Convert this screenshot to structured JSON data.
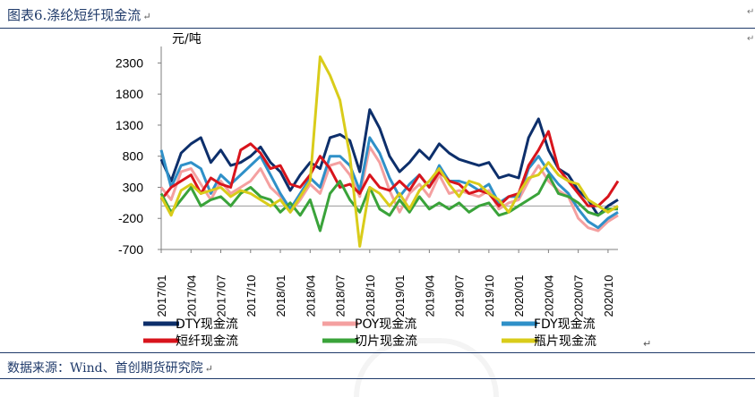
{
  "caption": {
    "title": "图表6.涤纶短纤现金流",
    "return_mark": "↵"
  },
  "source": {
    "text": "数据来源：Wind、首创期货研究院",
    "return_mark": "↵"
  },
  "legend_return_mark": "↵",
  "margin_marks": [
    "↵",
    "↵"
  ],
  "chart_data": {
    "type": "line",
    "ylabel": "元/吨",
    "ylim": [
      -700,
      2450
    ],
    "yticks": [
      -700,
      -200,
      300,
      800,
      1300,
      1800,
      2300
    ],
    "x_range": [
      "2017-01",
      "2020-11"
    ],
    "xticks": [
      "2017/01",
      "2017/04",
      "2017/07",
      "2017/10",
      "2018/01",
      "2018/04",
      "2018/07",
      "2018/10",
      "2019/01",
      "2019/04",
      "2019/07",
      "2019/10",
      "2020/01",
      "2020/04",
      "2020/07",
      "2020/10"
    ],
    "zero_line": true,
    "grid": false,
    "legend_position": "bottom",
    "series": [
      {
        "name": "DTY现金流",
        "color": "#0d2f6b",
        "points": [
          [
            "2017/01",
            750
          ],
          [
            "2017/02",
            400
          ],
          [
            "2017/03",
            850
          ],
          [
            "2017/04",
            1000
          ],
          [
            "2017/05",
            1100
          ],
          [
            "2017/06",
            700
          ],
          [
            "2017/07",
            900
          ],
          [
            "2017/08",
            650
          ],
          [
            "2017/09",
            700
          ],
          [
            "2017/10",
            800
          ],
          [
            "2017/11",
            950
          ],
          [
            "2017/12",
            700
          ],
          [
            "2018/01",
            550
          ],
          [
            "2018/02",
            250
          ],
          [
            "2018/03",
            500
          ],
          [
            "2018/04",
            700
          ],
          [
            "2018/05",
            600
          ],
          [
            "2018/06",
            1100
          ],
          [
            "2018/07",
            1150
          ],
          [
            "2018/08",
            1050
          ],
          [
            "2018/09",
            550
          ],
          [
            "2018/10",
            1550
          ],
          [
            "2018/11",
            1250
          ],
          [
            "2018/12",
            800
          ],
          [
            "2019/01",
            550
          ],
          [
            "2019/02",
            700
          ],
          [
            "2019/03",
            900
          ],
          [
            "2019/04",
            750
          ],
          [
            "2019/05",
            1000
          ],
          [
            "2019/06",
            850
          ],
          [
            "2019/07",
            750
          ],
          [
            "2019/08",
            700
          ],
          [
            "2019/09",
            650
          ],
          [
            "2019/10",
            700
          ],
          [
            "2019/11",
            450
          ],
          [
            "2019/12",
            500
          ],
          [
            "2020/01",
            450
          ],
          [
            "2020/02",
            1100
          ],
          [
            "2020/03",
            1400
          ],
          [
            "2020/04",
            900
          ],
          [
            "2020/05",
            600
          ],
          [
            "2020/06",
            500
          ],
          [
            "2020/07",
            250
          ],
          [
            "2020/08",
            100
          ],
          [
            "2020/09",
            -150
          ],
          [
            "2020/10",
            0
          ],
          [
            "2020/11",
            100
          ]
        ]
      },
      {
        "name": "POY现金流",
        "color": "#f4a0a0",
        "points": [
          [
            "2017/01",
            300
          ],
          [
            "2017/02",
            100
          ],
          [
            "2017/03",
            550
          ],
          [
            "2017/04",
            600
          ],
          [
            "2017/05",
            350
          ],
          [
            "2017/06",
            100
          ],
          [
            "2017/07",
            400
          ],
          [
            "2017/08",
            200
          ],
          [
            "2017/09",
            300
          ],
          [
            "2017/10",
            400
          ],
          [
            "2017/11",
            600
          ],
          [
            "2017/12",
            300
          ],
          [
            "2018/01",
            150
          ],
          [
            "2018/02",
            -100
          ],
          [
            "2018/03",
            100
          ],
          [
            "2018/04",
            350
          ],
          [
            "2018/05",
            200
          ],
          [
            "2018/06",
            650
          ],
          [
            "2018/07",
            700
          ],
          [
            "2018/08",
            500
          ],
          [
            "2018/09",
            150
          ],
          [
            "2018/10",
            950
          ],
          [
            "2018/11",
            700
          ],
          [
            "2018/12",
            250
          ],
          [
            "2019/01",
            -100
          ],
          [
            "2019/02",
            200
          ],
          [
            "2019/03",
            350
          ],
          [
            "2019/04",
            150
          ],
          [
            "2019/05",
            500
          ],
          [
            "2019/06",
            200
          ],
          [
            "2019/07",
            250
          ],
          [
            "2019/08",
            200
          ],
          [
            "2019/09",
            150
          ],
          [
            "2019/10",
            250
          ],
          [
            "2019/11",
            -50
          ],
          [
            "2019/12",
            50
          ],
          [
            "2020/01",
            100
          ],
          [
            "2020/02",
            400
          ],
          [
            "2020/03",
            650
          ],
          [
            "2020/04",
            400
          ],
          [
            "2020/05",
            250
          ],
          [
            "2020/06",
            150
          ],
          [
            "2020/07",
            -200
          ],
          [
            "2020/08",
            -350
          ],
          [
            "2020/09",
            -400
          ],
          [
            "2020/10",
            -250
          ],
          [
            "2020/11",
            -150
          ]
        ]
      },
      {
        "name": "FDY现金流",
        "color": "#2f90c8",
        "points": [
          [
            "2017/01",
            900
          ],
          [
            "2017/02",
            300
          ],
          [
            "2017/03",
            650
          ],
          [
            "2017/04",
            700
          ],
          [
            "2017/05",
            600
          ],
          [
            "2017/06",
            200
          ],
          [
            "2017/07",
            500
          ],
          [
            "2017/08",
            350
          ],
          [
            "2017/09",
            500
          ],
          [
            "2017/10",
            650
          ],
          [
            "2017/11",
            800
          ],
          [
            "2017/12",
            500
          ],
          [
            "2018/01",
            200
          ],
          [
            "2018/02",
            -50
          ],
          [
            "2018/03",
            200
          ],
          [
            "2018/04",
            450
          ],
          [
            "2018/05",
            300
          ],
          [
            "2018/06",
            800
          ],
          [
            "2018/07",
            800
          ],
          [
            "2018/08",
            650
          ],
          [
            "2018/09",
            250
          ],
          [
            "2018/10",
            1100
          ],
          [
            "2018/11",
            850
          ],
          [
            "2018/12",
            450
          ],
          [
            "2019/01",
            150
          ],
          [
            "2019/02",
            350
          ],
          [
            "2019/03",
            500
          ],
          [
            "2019/04",
            300
          ],
          [
            "2019/05",
            650
          ],
          [
            "2019/06",
            400
          ],
          [
            "2019/07",
            400
          ],
          [
            "2019/08",
            350
          ],
          [
            "2019/09",
            250
          ],
          [
            "2019/10",
            350
          ],
          [
            "2019/11",
            50
          ],
          [
            "2019/12",
            150
          ],
          [
            "2020/01",
            150
          ],
          [
            "2020/02",
            600
          ],
          [
            "2020/03",
            800
          ],
          [
            "2020/04",
            550
          ],
          [
            "2020/05",
            350
          ],
          [
            "2020/06",
            200
          ],
          [
            "2020/07",
            -50
          ],
          [
            "2020/08",
            -250
          ],
          [
            "2020/09",
            -350
          ],
          [
            "2020/10",
            -200
          ],
          [
            "2020/11",
            -100
          ]
        ]
      },
      {
        "name": "短纤现金流",
        "color": "#d8141c",
        "points": [
          [
            "2017/01",
            100
          ],
          [
            "2017/02",
            300
          ],
          [
            "2017/03",
            400
          ],
          [
            "2017/04",
            500
          ],
          [
            "2017/05",
            200
          ],
          [
            "2017/06",
            450
          ],
          [
            "2017/07",
            350
          ],
          [
            "2017/08",
            300
          ],
          [
            "2017/09",
            900
          ],
          [
            "2017/10",
            1000
          ],
          [
            "2017/11",
            850
          ],
          [
            "2017/12",
            600
          ],
          [
            "2018/01",
            650
          ],
          [
            "2018/02",
            350
          ],
          [
            "2018/03",
            300
          ],
          [
            "2018/04",
            500
          ],
          [
            "2018/05",
            800
          ],
          [
            "2018/06",
            600
          ],
          [
            "2018/07",
            300
          ],
          [
            "2018/08",
            350
          ],
          [
            "2018/09",
            200
          ],
          [
            "2018/10",
            500
          ],
          [
            "2018/11",
            300
          ],
          [
            "2018/12",
            250
          ],
          [
            "2019/01",
            400
          ],
          [
            "2019/02",
            250
          ],
          [
            "2019/03",
            500
          ],
          [
            "2019/04",
            300
          ],
          [
            "2019/05",
            550
          ],
          [
            "2019/06",
            400
          ],
          [
            "2019/07",
            350
          ],
          [
            "2019/08",
            200
          ],
          [
            "2019/09",
            250
          ],
          [
            "2019/10",
            200
          ],
          [
            "2019/11",
            0
          ],
          [
            "2019/12",
            150
          ],
          [
            "2020/01",
            200
          ],
          [
            "2020/02",
            650
          ],
          [
            "2020/03",
            900
          ],
          [
            "2020/04",
            1200
          ],
          [
            "2020/05",
            600
          ],
          [
            "2020/06",
            400
          ],
          [
            "2020/07",
            200
          ],
          [
            "2020/08",
            0
          ],
          [
            "2020/09",
            0
          ],
          [
            "2020/10",
            150
          ],
          [
            "2020/11",
            400
          ]
        ]
      },
      {
        "name": "切片现金流",
        "color": "#3aa33a",
        "points": [
          [
            "2017/01",
            200
          ],
          [
            "2017/02",
            -100
          ],
          [
            "2017/03",
            100
          ],
          [
            "2017/04",
            300
          ],
          [
            "2017/05",
            0
          ],
          [
            "2017/06",
            100
          ],
          [
            "2017/07",
            150
          ],
          [
            "2017/08",
            0
          ],
          [
            "2017/09",
            200
          ],
          [
            "2017/10",
            300
          ],
          [
            "2017/11",
            150
          ],
          [
            "2017/12",
            100
          ],
          [
            "2018/01",
            -100
          ],
          [
            "2018/02",
            50
          ],
          [
            "2018/03",
            -150
          ],
          [
            "2018/04",
            100
          ],
          [
            "2018/05",
            -400
          ],
          [
            "2018/06",
            200
          ],
          [
            "2018/07",
            400
          ],
          [
            "2018/08",
            100
          ],
          [
            "2018/09",
            -100
          ],
          [
            "2018/10",
            300
          ],
          [
            "2018/11",
            -50
          ],
          [
            "2018/12",
            -150
          ],
          [
            "2019/01",
            100
          ],
          [
            "2019/02",
            -100
          ],
          [
            "2019/03",
            150
          ],
          [
            "2019/04",
            -50
          ],
          [
            "2019/05",
            50
          ],
          [
            "2019/06",
            -50
          ],
          [
            "2019/07",
            50
          ],
          [
            "2019/08",
            -100
          ],
          [
            "2019/09",
            0
          ],
          [
            "2019/10",
            50
          ],
          [
            "2019/11",
            -150
          ],
          [
            "2019/12",
            -100
          ],
          [
            "2020/01",
            0
          ],
          [
            "2020/02",
            100
          ],
          [
            "2020/03",
            200
          ],
          [
            "2020/04",
            500
          ],
          [
            "2020/05",
            200
          ],
          [
            "2020/06",
            150
          ],
          [
            "2020/07",
            50
          ],
          [
            "2020/08",
            -100
          ],
          [
            "2020/09",
            -150
          ],
          [
            "2020/10",
            -50
          ],
          [
            "2020/11",
            -50
          ]
        ]
      },
      {
        "name": "瓶片现金流",
        "color": "#d9cc1a",
        "points": [
          [
            "2017/01",
            150
          ],
          [
            "2017/02",
            -150
          ],
          [
            "2017/03",
            250
          ],
          [
            "2017/04",
            350
          ],
          [
            "2017/05",
            200
          ],
          [
            "2017/06",
            250
          ],
          [
            "2017/07",
            300
          ],
          [
            "2017/08",
            150
          ],
          [
            "2017/09",
            250
          ],
          [
            "2017/10",
            200
          ],
          [
            "2017/11",
            100
          ],
          [
            "2017/12",
            0
          ],
          [
            "2018/01",
            100
          ],
          [
            "2018/02",
            -100
          ],
          [
            "2018/03",
            150
          ],
          [
            "2018/04",
            400
          ],
          [
            "2018/05",
            2400
          ],
          [
            "2018/06",
            2100
          ],
          [
            "2018/07",
            1700
          ],
          [
            "2018/08",
            800
          ],
          [
            "2018/09",
            -650
          ],
          [
            "2018/10",
            300
          ],
          [
            "2018/11",
            200
          ],
          [
            "2018/12",
            0
          ],
          [
            "2019/01",
            200
          ],
          [
            "2019/02",
            -50
          ],
          [
            "2019/03",
            250
          ],
          [
            "2019/04",
            400
          ],
          [
            "2019/05",
            600
          ],
          [
            "2019/06",
            350
          ],
          [
            "2019/07",
            150
          ],
          [
            "2019/08",
            400
          ],
          [
            "2019/09",
            350
          ],
          [
            "2019/10",
            200
          ],
          [
            "2019/11",
            100
          ],
          [
            "2019/12",
            -100
          ],
          [
            "2020/01",
            200
          ],
          [
            "2020/02",
            450
          ],
          [
            "2020/03",
            500
          ],
          [
            "2020/04",
            700
          ],
          [
            "2020/05",
            500
          ],
          [
            "2020/06",
            400
          ],
          [
            "2020/07",
            350
          ],
          [
            "2020/08",
            100
          ],
          [
            "2020/09",
            0
          ],
          [
            "2020/10",
            -100
          ],
          [
            "2020/11",
            0
          ]
        ]
      }
    ]
  }
}
